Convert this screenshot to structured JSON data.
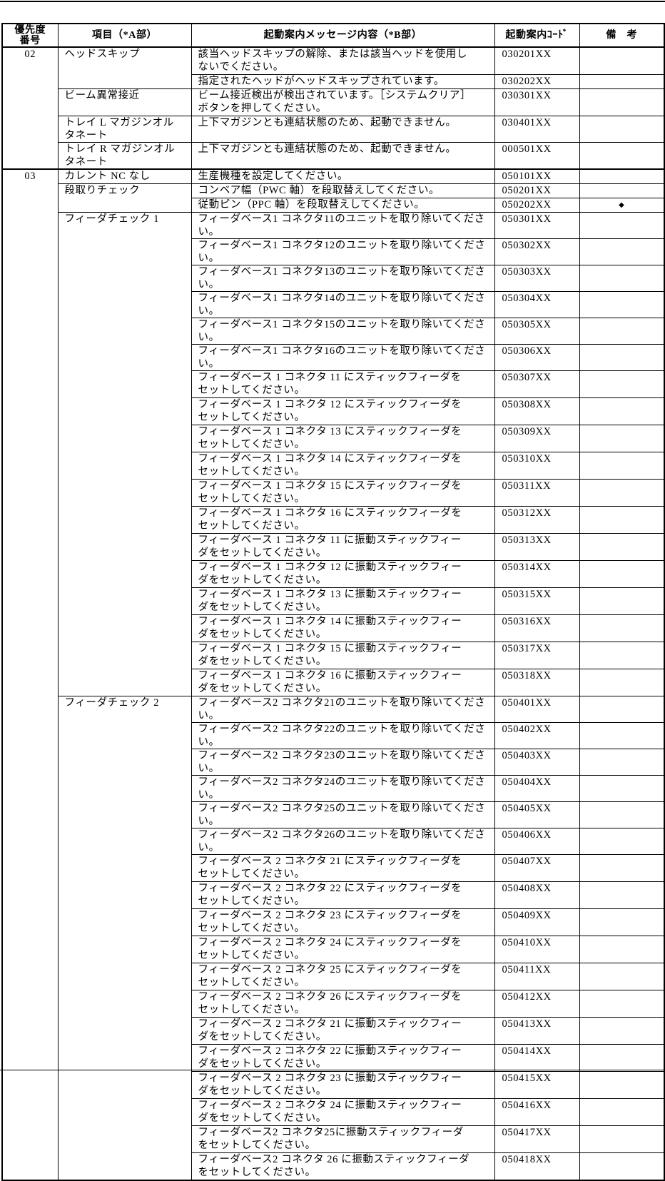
{
  "header": {
    "priority": "優先度\n番号",
    "item": "項目（*A部）",
    "message": "起動案内メッセージ内容（*B部）",
    "code": "起動案内ｺｰﾄﾞ",
    "note": "備　考"
  },
  "groups": [
    {
      "priority": "02",
      "items": [
        {
          "label": "ヘッドスキップ",
          "rows": [
            {
              "message": "該当ヘッドスキップの解除、または該当ヘッドを使用し\nないでください。",
              "code": "030201XX",
              "note": ""
            },
            {
              "message": "指定されたヘッドがヘッドスキップされています。",
              "code": "030202XX",
              "note": ""
            }
          ]
        },
        {
          "label": "ビーム異常接近",
          "rows": [
            {
              "message": "ビーム接近検出が検出されています。［システムクリア］\nボタンを押してください。",
              "code": "030301XX",
              "note": ""
            }
          ]
        },
        {
          "label": "トレイ L マガジンオル\nタネート",
          "rows": [
            {
              "message": "上下マガジンとも連結状態のため、起動できません。",
              "code": "030401XX",
              "note": ""
            }
          ]
        },
        {
          "label": "トレイ R マガジンオル\nタネート",
          "rows": [
            {
              "message": "上下マガジンとも連結状態のため、起動できません。",
              "code": "000501XX",
              "note": ""
            }
          ]
        }
      ]
    },
    {
      "priority": "03",
      "items": [
        {
          "label": "カレント NC なし",
          "rows": [
            {
              "message": "生産機種を設定してください。",
              "code": "050101XX",
              "note": ""
            }
          ]
        },
        {
          "label": "段取りチェック",
          "rows": [
            {
              "message": "コンベア幅（PWC 軸）を段取替えしてください。",
              "code": "050201XX",
              "note": ""
            },
            {
              "message": "従動ピン（PPC 軸）を段取替えしてください。",
              "code": "050202XX",
              "note": "◆"
            }
          ]
        },
        {
          "label": "フィーダチェック 1",
          "rows": [
            {
              "message": "フィーダベース1 コネクタ11のユニットを取り除いてください。",
              "code": "050301XX",
              "note": ""
            },
            {
              "message": "フィーダベース1 コネクタ12のユニットを取り除いてください。",
              "code": "050302XX",
              "note": ""
            },
            {
              "message": "フィーダベース1 コネクタ13のユニットを取り除いてください。",
              "code": "050303XX",
              "note": ""
            },
            {
              "message": "フィーダベース1 コネクタ14のユニットを取り除いてください。",
              "code": "050304XX",
              "note": ""
            },
            {
              "message": "フィーダベース1 コネクタ15のユニットを取り除いてください。",
              "code": "050305XX",
              "note": ""
            },
            {
              "message": "フィーダベース1 コネクタ16のユニットを取り除いてください。",
              "code": "050306XX",
              "note": ""
            },
            {
              "message": "フィーダベース 1 コネクタ 11 にスティックフィーダを\nセットしてください。",
              "code": "050307XX",
              "note": ""
            },
            {
              "message": "フィーダベース 1 コネクタ 12 にスティックフィーダを\nセットしてください。",
              "code": "050308XX",
              "note": ""
            },
            {
              "message": "フィーダベース 1 コネクタ 13 にスティックフィーダを\nセットしてください。",
              "code": "050309XX",
              "note": ""
            },
            {
              "message": "フィーダベース 1 コネクタ 14 にスティックフィーダを\nセットしてください。",
              "code": "050310XX",
              "note": ""
            },
            {
              "message": "フィーダベース 1 コネクタ 15 にスティックフィーダを\nセットしてください。",
              "code": "050311XX",
              "note": ""
            },
            {
              "message": "フィーダベース 1 コネクタ 16 にスティックフィーダを\nセットしてください。",
              "code": "050312XX",
              "note": ""
            },
            {
              "message": "フィーダベース 1 コネクタ 11 に振動スティックフィー\nダをセットしてください。",
              "code": "050313XX",
              "note": ""
            },
            {
              "message": "フィーダベース 1 コネクタ 12 に振動スティックフィー\nダをセットしてください。",
              "code": "050314XX",
              "note": ""
            },
            {
              "message": "フィーダベース 1 コネクタ 13 に振動スティックフィー\nダをセットしてください。",
              "code": "050315XX",
              "note": ""
            },
            {
              "message": "フィーダベース 1 コネクタ 14 に振動スティックフィー\nダをセットしてください。",
              "code": "050316XX",
              "note": ""
            },
            {
              "message": "フィーダベース 1 コネクタ 15 に振動スティックフィー\nダをセットしてください。",
              "code": "050317XX",
              "note": ""
            },
            {
              "message": "フィーダベース 1 コネクタ 16 に振動スティックフィー\nダをセットしてください。",
              "code": "050318XX",
              "note": ""
            }
          ]
        },
        {
          "label": "フィーダチェック 2",
          "rows": [
            {
              "message": "フィーダベース2 コネクタ21のユニットを取り除いてください。",
              "code": "050401XX",
              "note": ""
            },
            {
              "message": "フィーダベース2 コネクタ22のユニットを取り除いてください。",
              "code": "050402XX",
              "note": ""
            },
            {
              "message": "フィーダベース2 コネクタ23のユニットを取り除いてください。",
              "code": "050403XX",
              "note": ""
            },
            {
              "message": "フィーダベース2 コネクタ24のユニットを取り除いてください。",
              "code": "050404XX",
              "note": ""
            },
            {
              "message": "フィーダベース2 コネクタ25のユニットを取り除いてください。",
              "code": "050405XX",
              "note": ""
            },
            {
              "message": "フィーダベース2 コネクタ26のユニットを取り除いてください。",
              "code": "050406XX",
              "note": ""
            },
            {
              "message": "フィーダベース 2 コネクタ 21 にスティックフィーダを\nセットしてください。",
              "code": "050407XX",
              "note": ""
            },
            {
              "message": "フィーダベース 2 コネクタ 22 にスティックフィーダを\nセットしてください。",
              "code": "050408XX",
              "note": ""
            },
            {
              "message": "フィーダベース 2 コネクタ 23 にスティックフィーダを\nセットしてください。",
              "code": "050409XX",
              "note": ""
            },
            {
              "message": "フィーダベース 2 コネクタ 24 にスティックフィーダを\nセットしてください。",
              "code": "050410XX",
              "note": ""
            },
            {
              "message": "フィーダベース 2 コネクタ 25 にスティックフィーダを\nセットしてください。",
              "code": "050411XX",
              "note": ""
            },
            {
              "message": "フィーダベース 2 コネクタ 26 にスティックフィーダを\nセットしてください。",
              "code": "050412XX",
              "note": ""
            },
            {
              "message": "フィーダベース 2 コネクタ 21 に振動スティックフィー\nダをセットしてください。",
              "code": "050413XX",
              "note": ""
            },
            {
              "message": "フィーダベース 2 コネクタ 22 に振動スティックフィー\nダをセットしてください。",
              "code": "050414XX",
              "note": ""
            },
            {
              "message": "フィーダベース 2 コネクタ 23 に振動スティックフィー\nダをセットしてください。",
              "code": "050415XX",
              "note": ""
            },
            {
              "message": "フィーダベース 2 コネクタ 24 に振動スティックフィー\nダをセットしてください。",
              "code": "050416XX",
              "note": ""
            },
            {
              "message": "フィーダベース2 コネクタ25に振動スティックフィーダ\nをセットしてください。",
              "code": "050417XX",
              "note": ""
            },
            {
              "message": "フィーダベース2 コネクタ 26 に振動スティックフィーダ\nをセットしてください。",
              "code": "050418XX",
              "note": ""
            }
          ]
        }
      ]
    }
  ]
}
